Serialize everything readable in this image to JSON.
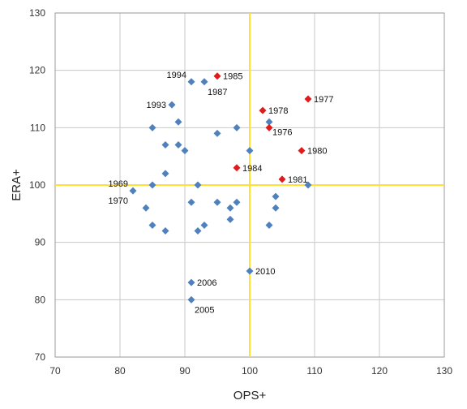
{
  "chart_data": {
    "type": "scatter",
    "xlabel": "OPS+",
    "ylabel": "ERA+",
    "xlim": [
      70,
      130
    ],
    "ylim": [
      70,
      130
    ],
    "xticks": [
      70,
      80,
      90,
      100,
      110,
      120,
      130
    ],
    "yticks": [
      70,
      80,
      90,
      100,
      110,
      120,
      130
    ],
    "x_tick_labels": [
      "70",
      "80",
      "90",
      "100",
      "110",
      "120",
      "130"
    ],
    "y_tick_labels": [
      "70",
      "80",
      "90",
      "100",
      "110",
      "120",
      "130"
    ],
    "grid": true,
    "reference_lines": {
      "x": 100,
      "y": 100,
      "color": "#FFE033"
    },
    "colors": {
      "blue": "#4F81BD",
      "red": "#E01B1B",
      "grid": "#C8C8C8"
    },
    "series": [
      {
        "color": "#4F81BD",
        "points": [
          {
            "x": 91,
            "y": 118,
            "label": "1994",
            "label_pos": "left-above"
          },
          {
            "x": 93,
            "y": 118,
            "label": "1987",
            "label_pos": "right-below"
          },
          {
            "x": 88,
            "y": 114,
            "label": "1993",
            "label_pos": "left"
          },
          {
            "x": 103,
            "y": 111,
            "label": "1976",
            "label_pos": "right-below"
          },
          {
            "x": 82,
            "y": 99,
            "label": "1969",
            "label_pos": "left-above"
          },
          {
            "x": 82,
            "y": 99,
            "label": "1970",
            "label_pos": "left-below"
          },
          {
            "x": 91,
            "y": 83,
            "label": "2006",
            "label_pos": "right"
          },
          {
            "x": 91,
            "y": 80,
            "label": "2005",
            "label_pos": "right-below"
          },
          {
            "x": 100,
            "y": 85,
            "label": "2010",
            "label_pos": "right"
          },
          {
            "x": 85,
            "y": 110
          },
          {
            "x": 89,
            "y": 111
          },
          {
            "x": 87,
            "y": 107
          },
          {
            "x": 89,
            "y": 107
          },
          {
            "x": 90,
            "y": 106
          },
          {
            "x": 95,
            "y": 109
          },
          {
            "x": 98,
            "y": 110
          },
          {
            "x": 100,
            "y": 106
          },
          {
            "x": 87,
            "y": 102
          },
          {
            "x": 85,
            "y": 100
          },
          {
            "x": 92,
            "y": 100
          },
          {
            "x": 84,
            "y": 96
          },
          {
            "x": 91,
            "y": 97
          },
          {
            "x": 95,
            "y": 97
          },
          {
            "x": 98,
            "y": 97
          },
          {
            "x": 97,
            "y": 96
          },
          {
            "x": 104,
            "y": 98
          },
          {
            "x": 104,
            "y": 96
          },
          {
            "x": 109,
            "y": 100
          },
          {
            "x": 97,
            "y": 94
          },
          {
            "x": 85,
            "y": 93
          },
          {
            "x": 87,
            "y": 92
          },
          {
            "x": 92,
            "y": 92
          },
          {
            "x": 93,
            "y": 93
          },
          {
            "x": 103,
            "y": 93
          }
        ]
      },
      {
        "color": "#E01B1B",
        "points": [
          {
            "x": 95,
            "y": 119,
            "label": "1985",
            "label_pos": "right"
          },
          {
            "x": 109,
            "y": 115,
            "label": "1977",
            "label_pos": "right"
          },
          {
            "x": 102,
            "y": 113,
            "label": "1978",
            "label_pos": "right"
          },
          {
            "x": 103,
            "y": 110,
            "label": "",
            "label_pos": "right"
          },
          {
            "x": 108,
            "y": 106,
            "label": "1980",
            "label_pos": "right"
          },
          {
            "x": 98,
            "y": 103,
            "label": "1984",
            "label_pos": "right"
          },
          {
            "x": 105,
            "y": 101,
            "label": "1981",
            "label_pos": "right"
          }
        ]
      }
    ]
  }
}
